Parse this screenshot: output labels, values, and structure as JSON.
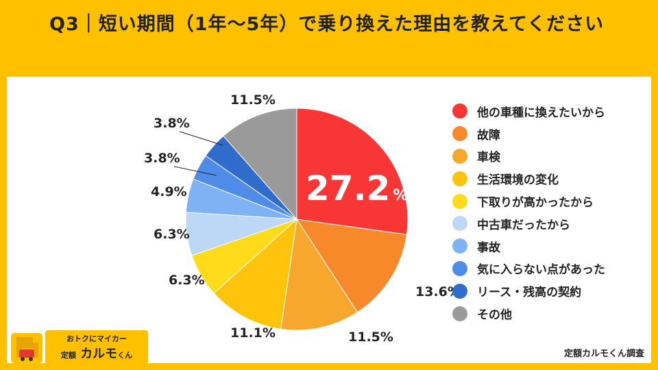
{
  "title": "Q3｜短い期間（1年～5年）で乗り換えた理由を教えてください",
  "source": "定額カルモくん調査",
  "logo": {
    "tagline": "おトクにマイカー",
    "prefix": "定額",
    "brand": "カルモ",
    "suffix": "くん"
  },
  "chart_data": {
    "type": "pie",
    "start": "12 o'clock, clockwise",
    "unit": "%",
    "categories": [
      "他の車種に換えたいから",
      "故障",
      "車検",
      "生活環境の変化",
      "下取りが高かったから",
      "中古車だったから",
      "事故",
      "気に入らない点があった",
      "リース・残高の契約",
      "その他"
    ],
    "values": [
      27.2,
      13.6,
      11.5,
      11.1,
      6.3,
      6.3,
      4.9,
      3.8,
      3.8,
      11.5
    ],
    "labels": [
      "27.2",
      "13.6%",
      "11.5%",
      "11.1%",
      "6.3%",
      "6.3%",
      "4.9%",
      "3.8%",
      "3.8%",
      "11.5%"
    ],
    "colors": [
      "#F83636",
      "#F8892A",
      "#F8A72E",
      "#FFC30C",
      "#FFDB1C",
      "#BDD7F7",
      "#7FB2F5",
      "#4E8CE8",
      "#2F6CCB",
      "#9A9A9A"
    ],
    "legend_position": "right"
  }
}
